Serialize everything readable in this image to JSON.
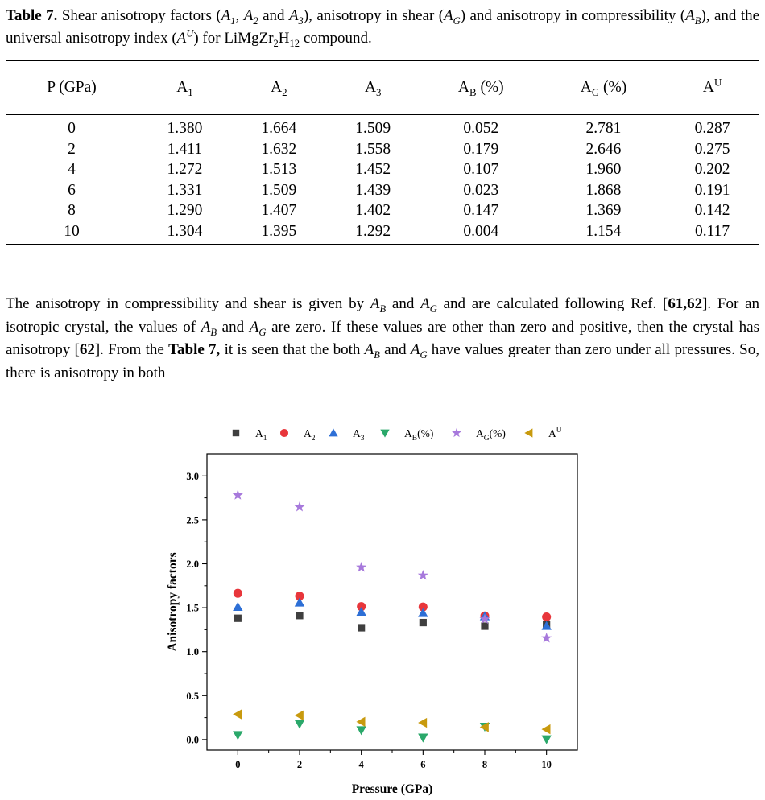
{
  "caption": {
    "label": "Table 7.",
    "text_parts": [
      "Shear anisotropy factors (",
      "), anisotropy in shear (",
      ") and anisotropy in compressibility (",
      "), and the universal anisotropy index (",
      ") for ",
      " compound."
    ],
    "vars": [
      "A",
      "1",
      "A",
      "2",
      "A",
      "3",
      "A",
      "G",
      "A",
      "B",
      "A",
      "U"
    ],
    "compound": "LiMgZr2H12"
  },
  "table": {
    "headers": [
      "P (GPa)",
      "A1",
      "A2",
      "A3",
      "AB (%)",
      "AG (%)",
      "AU"
    ],
    "rows": [
      [
        "0",
        "1.380",
        "1.664",
        "1.509",
        "0.052",
        "2.781",
        "0.287"
      ],
      [
        "2",
        "1.411",
        "1.632",
        "1.558",
        "0.179",
        "2.646",
        "0.275"
      ],
      [
        "4",
        "1.272",
        "1.513",
        "1.452",
        "0.107",
        "1.960",
        "0.202"
      ],
      [
        "6",
        "1.331",
        "1.509",
        "1.439",
        "0.023",
        "1.868",
        "0.191"
      ],
      [
        "8",
        "1.290",
        "1.407",
        "1.402",
        "0.147",
        "1.369",
        "0.142"
      ],
      [
        "10",
        "1.304",
        "1.395",
        "1.292",
        "0.004",
        "1.154",
        "0.117"
      ]
    ]
  },
  "paragraph": {
    "s1": "The anisotropy in compressibility and shear is given by ",
    "s2": " and ",
    "s3": " and are calculated following Ref. [",
    "ref1": "61,62",
    "s4": "]. For an isotropic crystal, the values of ",
    "s5": " and ",
    "s6": " are zero. If these values are other than zero and positive, then the crystal has anisotropy [",
    "ref2": "62",
    "s7": "]. From the ",
    "table_ref": "Table 7,",
    "s8": " it is seen that the both ",
    "s9": " and ",
    "s10": " have values greater than zero under all pressures. So, there is anisotropy in both"
  },
  "chart_data": {
    "type": "scatter",
    "xlabel": "Pressure (GPa)",
    "ylabel": "Anisotropy factors",
    "x": [
      0,
      2,
      4,
      6,
      8,
      10
    ],
    "x_ticks": [
      "0",
      "2",
      "4",
      "6",
      "8",
      "10"
    ],
    "y_ticks": [
      "0.0",
      "0.5",
      "1.0",
      "1.5",
      "2.0",
      "2.5",
      "3.0"
    ],
    "xlim": [
      -1,
      11
    ],
    "ylim": [
      -0.12,
      3.25
    ],
    "legend_position": "top",
    "series": [
      {
        "name": "A1",
        "sub": "1",
        "marker": "square",
        "color": "#3f3f3f",
        "values": [
          1.38,
          1.411,
          1.272,
          1.331,
          1.29,
          1.304
        ]
      },
      {
        "name": "A2",
        "sub": "2",
        "marker": "circle",
        "color": "#e8363b",
        "values": [
          1.664,
          1.632,
          1.513,
          1.509,
          1.407,
          1.395
        ]
      },
      {
        "name": "A3",
        "sub": "3",
        "marker": "triangle-up",
        "color": "#2d6fd6",
        "values": [
          1.509,
          1.558,
          1.452,
          1.439,
          1.402,
          1.292
        ]
      },
      {
        "name": "AB(%)",
        "sub": "B",
        "tail": "(%)",
        "marker": "triangle-down",
        "color": "#2aa86a",
        "values": [
          0.052,
          0.179,
          0.107,
          0.023,
          0.147,
          0.004
        ]
      },
      {
        "name": "AG(%)",
        "sub": "G",
        "tail": "(%)",
        "marker": "star",
        "color": "#a779dc",
        "values": [
          2.781,
          2.646,
          1.96,
          1.868,
          1.369,
          1.154
        ]
      },
      {
        "name": "AU",
        "sup": "U",
        "marker": "triangle-left",
        "color": "#c89a0e",
        "values": [
          0.287,
          0.275,
          0.202,
          0.191,
          0.142,
          0.117
        ]
      }
    ]
  }
}
